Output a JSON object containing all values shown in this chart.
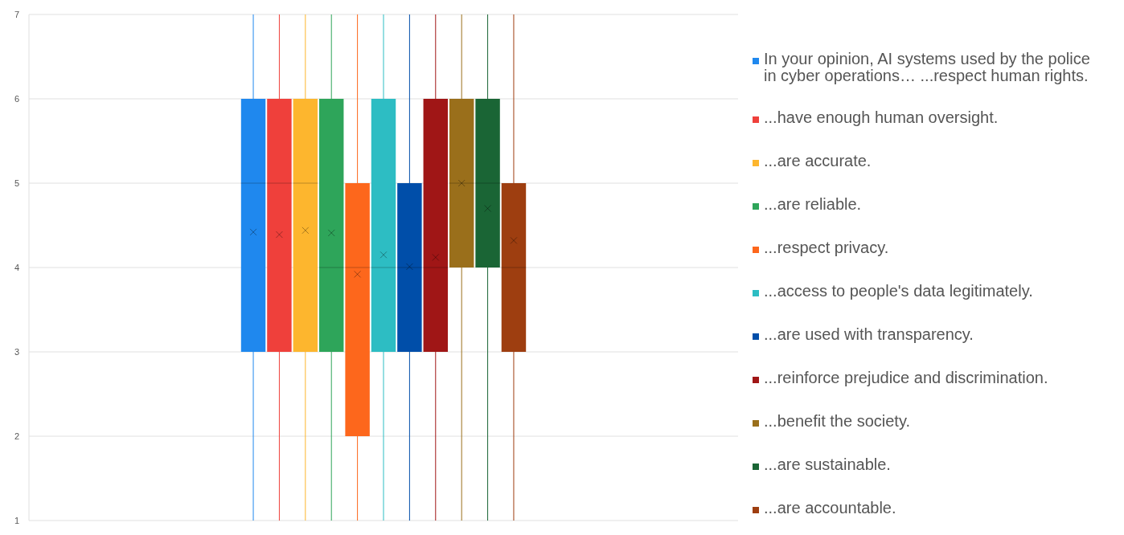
{
  "chart_data": {
    "type": "box",
    "categories": [
      null
    ],
    "ylim": [
      1,
      7
    ],
    "yticks": [
      1,
      2,
      3,
      4,
      5,
      6,
      7
    ],
    "grid": "y",
    "legend": "right",
    "marker": "cross",
    "series": [
      {
        "name": "In your opinion, AI systems used by the police in cyber operations… ...respect human rights.",
        "color": "#1f88ee",
        "boxes": [
          {
            "low": 1,
            "q1": 3,
            "median": 5,
            "q3": 6,
            "high": 7,
            "mean": 4.42
          }
        ]
      },
      {
        "name": "...have enough human oversight.",
        "color": "#ef403b",
        "boxes": [
          {
            "low": 1,
            "q1": 3,
            "median": 5,
            "q3": 6,
            "high": 7,
            "mean": 4.39
          }
        ]
      },
      {
        "name": "...are accurate.",
        "color": "#fdb62e",
        "boxes": [
          {
            "low": 1,
            "q1": 3,
            "median": 5,
            "q3": 6,
            "high": 7,
            "mean": 4.44
          }
        ]
      },
      {
        "name": "...are reliable.",
        "color": "#2ea55a",
        "boxes": [
          {
            "low": 1,
            "q1": 3,
            "median": 4,
            "q3": 6,
            "high": 7,
            "mean": 4.41
          }
        ]
      },
      {
        "name": "...respect privacy.",
        "color": "#fd671c",
        "boxes": [
          {
            "low": 1,
            "q1": 2,
            "median": 4,
            "q3": 5,
            "high": 7,
            "mean": 3.92
          }
        ]
      },
      {
        "name": "...access to people's data legitimately.",
        "color": "#2dbdc3",
        "boxes": [
          {
            "low": 1,
            "q1": 3,
            "median": 4,
            "q3": 6,
            "high": 7,
            "mean": 4.15
          }
        ]
      },
      {
        "name": "...are used with transparency.",
        "color": "#004ea9",
        "boxes": [
          {
            "low": 1,
            "q1": 3,
            "median": 4,
            "q3": 5,
            "high": 7,
            "mean": 4.01
          }
        ]
      },
      {
        "name": "...reinforce prejudice and discrimination.",
        "color": "#a01616",
        "boxes": [
          {
            "low": 1,
            "q1": 3,
            "median": 4,
            "q3": 6,
            "high": 7,
            "mean": 4.12
          }
        ]
      },
      {
        "name": "...benefit the society.",
        "color": "#9a6f1b",
        "boxes": [
          {
            "low": 1,
            "q1": 4,
            "median": 5,
            "q3": 6,
            "high": 7,
            "mean": 5.0
          }
        ]
      },
      {
        "name": "...are sustainable.",
        "color": "#1a6535",
        "boxes": [
          {
            "low": 1,
            "q1": 4,
            "median": 5,
            "q3": 6,
            "high": 7,
            "mean": 4.7
          }
        ]
      },
      {
        "name": "...are accountable.",
        "color": "#9e3e10",
        "boxes": [
          {
            "low": 1,
            "q1": 3,
            "median": 4,
            "q3": 5,
            "high": 7,
            "mean": 4.32
          }
        ]
      }
    ]
  }
}
